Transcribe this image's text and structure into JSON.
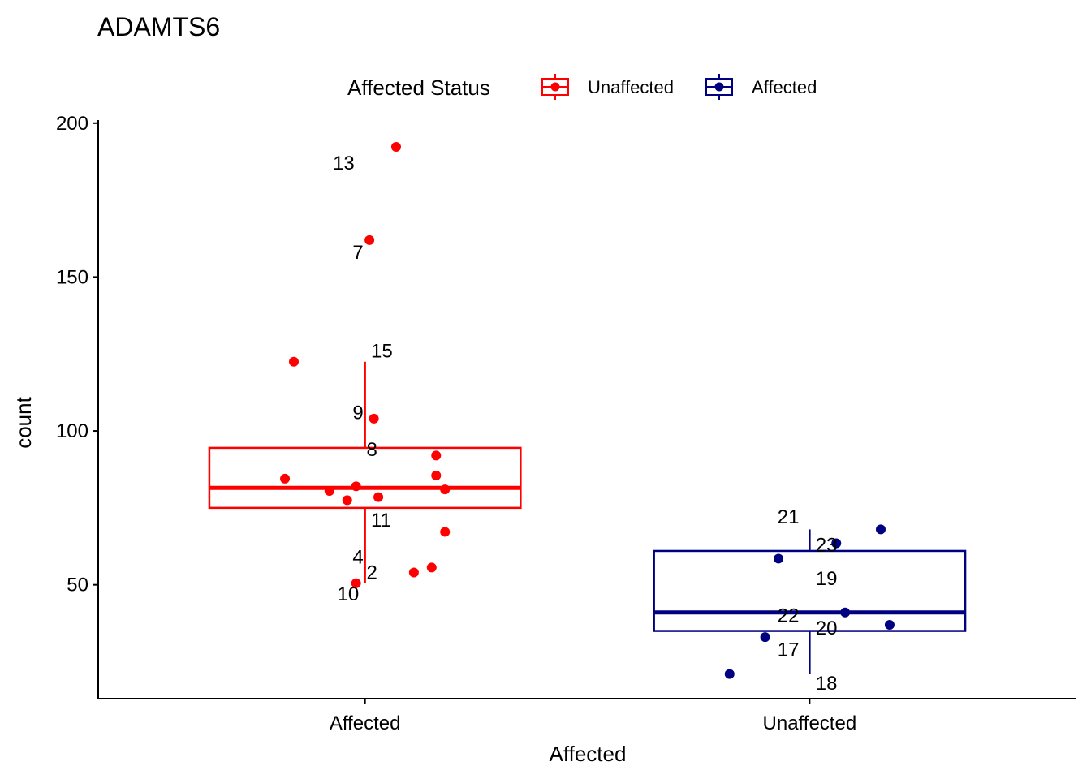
{
  "chart_data": {
    "type": "boxplot",
    "title": "ADAMTS6",
    "xlabel": "Affected",
    "ylabel": "count",
    "ylim": [
      13,
      201
    ],
    "yticks": [
      50,
      100,
      150,
      200
    ],
    "categories": [
      "Affected",
      "Unaffected"
    ],
    "legend": {
      "title": "Affected Status",
      "position": "top",
      "entries": [
        {
          "label": "Unaffected",
          "color": "#FF0000"
        },
        {
          "label": "Affected",
          "color": "#000080"
        }
      ]
    },
    "grid": false,
    "series": [
      {
        "category": "Affected",
        "color": "#FF0000",
        "box": {
          "whisker_low": 50.5,
          "q1": 75,
          "median": 81.5,
          "q3": 94.5,
          "whisker_high": 122.5
        },
        "points": [
          {
            "x": 0.07,
            "y": 192.3
          },
          {
            "x": 0.01,
            "y": 162
          },
          {
            "x": -0.16,
            "y": 122.5
          },
          {
            "x": 0.02,
            "y": 104
          },
          {
            "x": 0.16,
            "y": 92
          },
          {
            "x": -0.18,
            "y": 84.5
          },
          {
            "x": 0.16,
            "y": 85.5
          },
          {
            "x": 0.18,
            "y": 81
          },
          {
            "x": -0.08,
            "y": 80.5
          },
          {
            "x": -0.02,
            "y": 82
          },
          {
            "x": -0.04,
            "y": 77.5
          },
          {
            "x": 0.03,
            "y": 78.5
          },
          {
            "x": 0.18,
            "y": 67.2
          },
          {
            "x": 0.15,
            "y": 55.6
          },
          {
            "x": 0.11,
            "y": 54
          },
          {
            "x": -0.02,
            "y": 50.5
          }
        ],
        "labels": [
          {
            "text": "13",
            "x": -0.06,
            "y": 187
          },
          {
            "text": "7",
            "x": -0.04,
            "y": 158
          },
          {
            "text": "15",
            "x": 0.05,
            "y": 126
          },
          {
            "text": "9",
            "x": -0.04,
            "y": 106
          },
          {
            "text": "8",
            "x": 0.04,
            "y": 94
          },
          {
            "text": "11",
            "x": 0.05,
            "y": 71
          },
          {
            "text": "4",
            "x": -0.04,
            "y": 59
          },
          {
            "text": "2",
            "x": 0.04,
            "y": 54
          },
          {
            "text": "10",
            "x": -0.05,
            "y": 47
          }
        ]
      },
      {
        "category": "Unaffected",
        "color": "#000080",
        "box": {
          "whisker_low": 21,
          "q1": 35,
          "median": 41,
          "q3": 61,
          "whisker_high": 68
        },
        "points": [
          {
            "x": 0.16,
            "y": 68
          },
          {
            "x": 0.06,
            "y": 63.5
          },
          {
            "x": -0.07,
            "y": 58.5
          },
          {
            "x": 0.08,
            "y": 41
          },
          {
            "x": 0.18,
            "y": 37
          },
          {
            "x": -0.1,
            "y": 33
          },
          {
            "x": -0.18,
            "y": 21
          }
        ],
        "labels": [
          {
            "text": "21",
            "x": -0.06,
            "y": 72
          },
          {
            "text": "23",
            "x": 0.05,
            "y": 63
          },
          {
            "text": "19",
            "x": 0.05,
            "y": 52
          },
          {
            "text": "22",
            "x": -0.06,
            "y": 40
          },
          {
            "text": "20",
            "x": 0.05,
            "y": 36
          },
          {
            "text": "17",
            "x": -0.06,
            "y": 29
          },
          {
            "text": "18",
            "x": 0.05,
            "y": 18
          }
        ]
      }
    ]
  }
}
